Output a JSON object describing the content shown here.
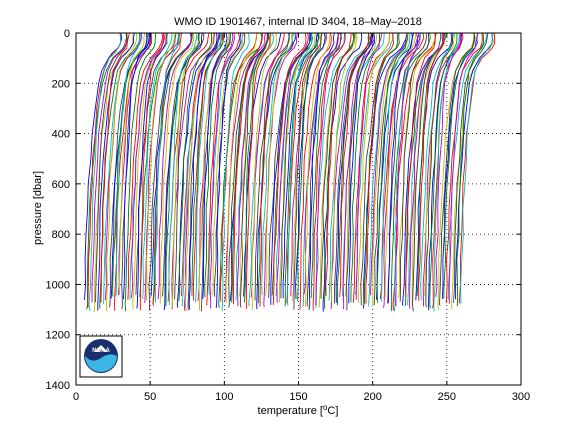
{
  "chart_data": {
    "type": "line",
    "title": "WMO ID 1901467, internal ID 3404, 18–May–2018",
    "xlabel_prefix": "temperature [",
    "xlabel_unit": "C",
    "xlabel_suffix": "]",
    "ylabel": "pressure [dbar]",
    "xlim": [
      0,
      300
    ],
    "ylim": [
      1400,
      0
    ],
    "y_reversed": true,
    "xticks": [
      0,
      50,
      100,
      150,
      200,
      250,
      300
    ],
    "yticks": [
      0,
      200,
      400,
      600,
      800,
      1000,
      1200,
      1400
    ],
    "xtick_labels": [
      "0",
      "50",
      "100",
      "150",
      "200",
      "250",
      "300"
    ],
    "ytick_labels": [
      "0",
      "200",
      "400",
      "600",
      "800",
      "1000",
      "1200",
      "1400"
    ],
    "grid": true,
    "grid_style": "dotted",
    "series_count": 200,
    "series_offset_step": 1.3,
    "series_colors": [
      "#0000ff",
      "#008000",
      "#ff0000",
      "#00bfbf",
      "#bf00bf",
      "#bfbf00",
      "#404040"
    ],
    "profile_template": {
      "pressure": [
        0,
        20,
        40,
        60,
        80,
        100,
        150,
        200,
        300,
        400,
        500,
        600,
        700,
        800,
        900,
        1000,
        1080
      ],
      "temperature_delta": [
        24,
        24,
        23.5,
        22,
        19,
        16,
        12,
        10,
        8,
        6.5,
        5.2,
        4.2,
        3.4,
        2.8,
        2.3,
        1.9,
        1.6
      ]
    },
    "first_profile_base": 4,
    "last_profile_base": 258,
    "logo": {
      "text": "NOAA",
      "outer_color": "#1a2f6e",
      "inner_color": "#3db5e6"
    }
  }
}
